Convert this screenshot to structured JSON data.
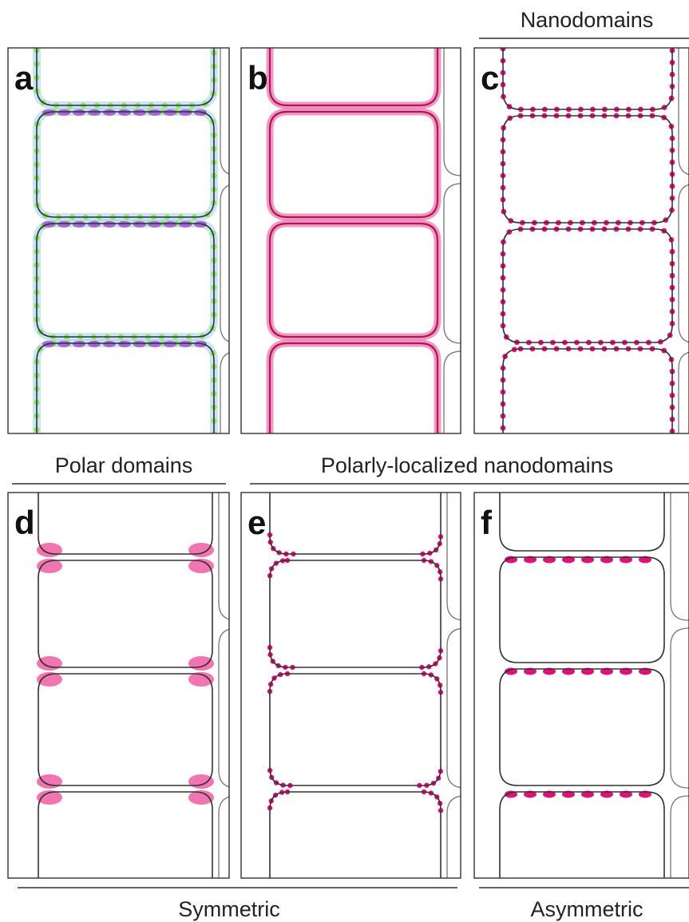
{
  "panels": [
    {
      "label": "a"
    },
    {
      "label": "b"
    },
    {
      "label": "c"
    },
    {
      "label": "d"
    },
    {
      "label": "e"
    },
    {
      "label": "f"
    }
  ],
  "headers": {
    "nanodomains": "Nanodomains",
    "polar_domains": "Polar domains",
    "polarly_localized_nanodomains": "Polarly-localized nanodomains"
  },
  "footers": {
    "symmetric": "Symmetric",
    "asymmetric": "Asymmetric"
  }
}
